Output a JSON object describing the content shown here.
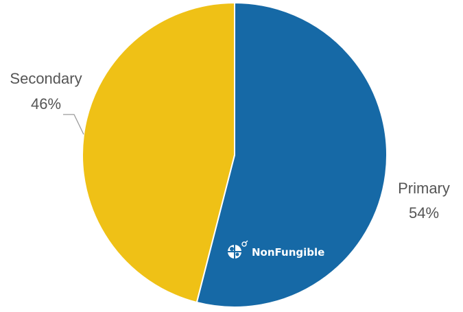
{
  "chart_data": {
    "type": "pie",
    "title": "",
    "categories": [
      "Primary",
      "Secondary"
    ],
    "values": [
      54,
      46
    ],
    "percent_labels": [
      "54%",
      "46%"
    ],
    "colors": [
      "#1669a6",
      "#efc116"
    ],
    "start_angle": "top (12 o'clock), clockwise",
    "legend": "none",
    "label_placement": "outside with leader line on Secondary"
  },
  "watermark": {
    "text": "NonFungible",
    "icon": "nonfungible-logo-icon"
  }
}
